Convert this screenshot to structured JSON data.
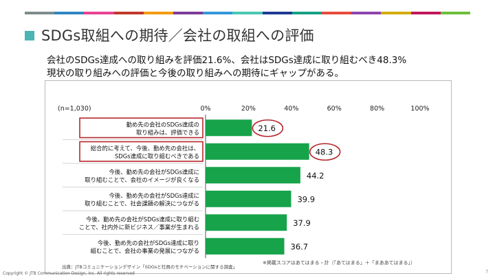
{
  "header": {
    "title": "SDGs取組への期待／会社の取組への評価",
    "subtitle_line1": "会社のSDGs達成への取り組みを評価21.6%、会社はSDGs達成に取り組むべき48.3%",
    "subtitle_line2": "現状の取り組みへの評価と今後の取り組みへの期待にギャップがある。"
  },
  "stripe_colors": [
    "#7f8c8d",
    "#2e86c1",
    "#e84393",
    "#c0392b",
    "#f39c12",
    "#7d3c98",
    "#3498db",
    "#48c9b0",
    "#1f3a93",
    "#16a085",
    "#e74c3c",
    "#8e44ad",
    "#d4ac0d",
    "#c2185b",
    "#6cbf3c"
  ],
  "colors": {
    "bar": "#17a34a",
    "highlight": "#b5262b",
    "title_square": "#4bb4b4"
  },
  "chart_data": {
    "type": "bar",
    "orientation": "horizontal",
    "sample_label": "(n=1,030)",
    "xlim": [
      0,
      100
    ],
    "ticks": [
      "0%",
      "20%",
      "40%",
      "60%",
      "80%",
      "100%"
    ],
    "categories": [
      [
        "勤め先の会社のSDGs達成の",
        "取り組みは、評価できる"
      ],
      [
        "総合的に考えて、今後、勤め先の会社は、",
        "SDGs達成に取り組むべきである"
      ],
      [
        "今後、勤め先の会社がSDGs達成に",
        "取り組むことで、会社のイメージが良くなる"
      ],
      [
        "今後、勤め先の会社がSDGs達成に",
        "取り組むことで、社会課題の解決につながる"
      ],
      [
        "今後、勤め先の会社がSDGs達成に取り組む",
        "ことで、社内外に新ビジネス／事業が生まれる"
      ],
      [
        "今後、勤め先の会社がSDGs達成に取り",
        "組むことで、会社の事業の発展につながる"
      ]
    ],
    "values": [
      21.6,
      48.3,
      44.2,
      39.9,
      37.9,
      36.7
    ],
    "value_labels": [
      "21.6",
      "48.3",
      "44.2",
      "39.9",
      "37.9",
      "36.7"
    ],
    "highlighted": [
      0,
      1
    ]
  },
  "footnotes": {
    "source": "出典：JTBコミュニケーションデザイン「SDGsと社員のモチベーションに関する調査」",
    "note": "※掲載スコアはあてはまる・計（「あてはまる」＋「まああてはまる」）",
    "copyright": "Copyright © JTB Communication Design, Inc. All rights reserved",
    "page": "7"
  }
}
